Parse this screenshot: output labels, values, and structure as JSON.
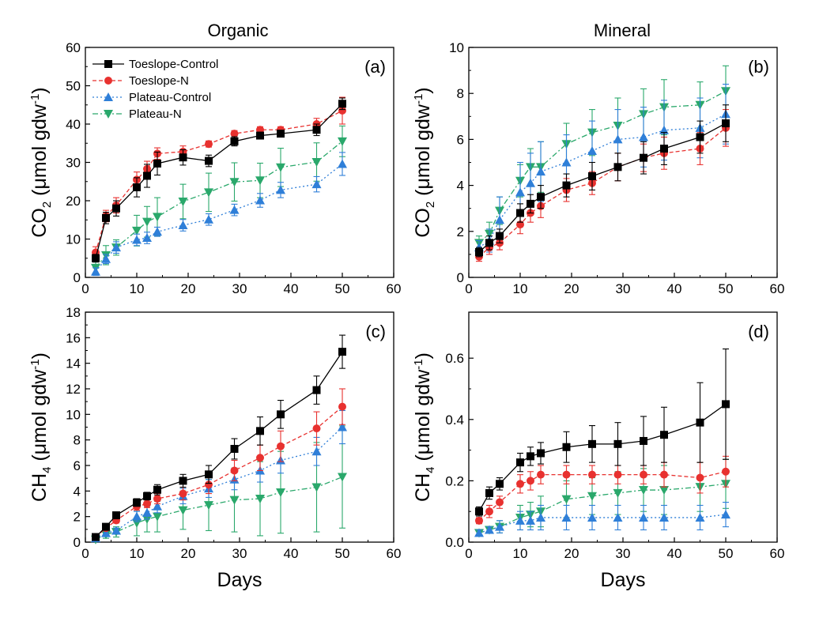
{
  "figure": {
    "column_titles": [
      "Organic",
      "Mineral"
    ],
    "x_label": "Days",
    "x_ticks": [
      0,
      10,
      20,
      30,
      40,
      50,
      60
    ],
    "legend": [
      "Toeslope-Control",
      "Toeslope-N",
      "Plateau-Control",
      "Plateau-N"
    ]
  },
  "colors": {
    "Toeslope-Control": "#000000",
    "Toeslope-N": "#e8312f",
    "Plateau-Control": "#2f7fd8",
    "Plateau-N": "#2aa86b"
  },
  "chart_data": [
    {
      "panel": "(a)",
      "type": "line",
      "title": "Organic",
      "ylabel_main": "CO",
      "ylabel_sub": "2",
      "ylabel_unit": "(μmol gdw",
      "ylabel_sup": "-1",
      "xlim": [
        0,
        60
      ],
      "ylim": [
        0,
        60
      ],
      "yticks": [
        0,
        10,
        20,
        30,
        40,
        50,
        60
      ],
      "yticklabels": [
        "0",
        "10",
        "20",
        "30",
        "40",
        "50",
        "60"
      ],
      "legend_position": "top-left",
      "x": [
        2,
        4,
        6,
        10,
        12,
        14,
        19,
        24,
        29,
        34,
        38,
        45,
        50
      ],
      "series": [
        {
          "name": "Toeslope-Control",
          "values": [
            5,
            15.5,
            18,
            23.5,
            26.5,
            29.7,
            31.3,
            30.4,
            35.5,
            37,
            37.5,
            38.5,
            45.3
          ],
          "errors": [
            1,
            1.5,
            2,
            2.5,
            3,
            3,
            2,
            1.5,
            1.2,
            0.8,
            0.8,
            1.5,
            1.5
          ]
        },
        {
          "name": "Toeslope-N",
          "values": [
            6.5,
            16,
            18.8,
            25.5,
            28.3,
            32.3,
            32.8,
            34.8,
            37.5,
            38.5,
            38.5,
            40,
            43.5
          ],
          "errors": [
            1.5,
            1.5,
            2,
            2,
            2,
            1.5,
            1.5,
            0.8,
            0.8,
            0.8,
            0.8,
            1.5,
            3.5
          ]
        },
        {
          "name": "Plateau-Control",
          "values": [
            1.5,
            4.8,
            7.8,
            9.8,
            10.3,
            11.9,
            13.6,
            15.1,
            17.6,
            20.1,
            22.8,
            24.3,
            29.6
          ],
          "errors": [
            1,
            1.2,
            1.5,
            1.5,
            1.5,
            1.2,
            1.5,
            1.5,
            1.5,
            1.8,
            2,
            2,
            3
          ]
        },
        {
          "name": "Plateau-N",
          "values": [
            2.5,
            5.8,
            7.8,
            12.2,
            14.5,
            15.8,
            19.8,
            22.2,
            24.9,
            25.3,
            28.7,
            30.1,
            35.5
          ],
          "errors": [
            1.5,
            2.5,
            2,
            4,
            4,
            5,
            4.5,
            5,
            5,
            4.5,
            5,
            5,
            4
          ]
        }
      ]
    },
    {
      "panel": "(b)",
      "type": "line",
      "title": "Mineral",
      "ylabel_main": "CO",
      "ylabel_sub": "2",
      "ylabel_unit": "(μmol gdw",
      "ylabel_sup": "-1",
      "xlim": [
        0,
        60
      ],
      "ylim": [
        0,
        10
      ],
      "yticks": [
        0,
        2,
        4,
        6,
        8,
        10
      ],
      "yticklabels": [
        "0",
        "2",
        "4",
        "6",
        "8",
        "10"
      ],
      "x": [
        2,
        4,
        6,
        10,
        12,
        14,
        19,
        24,
        29,
        34,
        38,
        45,
        50
      ],
      "series": [
        {
          "name": "Toeslope-Control",
          "values": [
            1.1,
            1.5,
            1.8,
            2.8,
            3.2,
            3.5,
            4.0,
            4.4,
            4.8,
            5.2,
            5.6,
            6.1,
            6.7
          ],
          "errors": [
            0.2,
            0.3,
            0.3,
            0.4,
            0.4,
            0.5,
            0.5,
            0.6,
            0.6,
            0.7,
            0.7,
            0.7,
            0.8
          ]
        },
        {
          "name": "Toeslope-N",
          "values": [
            0.9,
            1.3,
            1.5,
            2.3,
            2.8,
            3.1,
            3.8,
            4.1,
            4.8,
            5.2,
            5.4,
            5.6,
            6.5
          ],
          "errors": [
            0.2,
            0.3,
            0.3,
            0.4,
            0.4,
            0.5,
            0.5,
            0.5,
            0.6,
            0.6,
            0.7,
            0.7,
            0.8
          ]
        },
        {
          "name": "Plateau-Control",
          "values": [
            1.3,
            1.6,
            2.5,
            3.7,
            4.1,
            4.6,
            5.0,
            5.5,
            6.0,
            6.1,
            6.4,
            6.5,
            7.1
          ],
          "errors": [
            0.3,
            0.5,
            1.0,
            1.3,
            1.3,
            1.3,
            1.2,
            1.3,
            1.3,
            1.3,
            1.3,
            1.3,
            1.3
          ]
        },
        {
          "name": "Plateau-N",
          "values": [
            1.5,
            1.9,
            2.9,
            4.2,
            4.8,
            4.8,
            5.8,
            6.3,
            6.6,
            7.1,
            7.4,
            7.5,
            8.1
          ],
          "errors": [
            0.3,
            0.5,
            0.6,
            0.7,
            0.8,
            1.1,
            0.9,
            1.0,
            1.2,
            1.1,
            1.2,
            1.0,
            1.1
          ]
        }
      ]
    },
    {
      "panel": "(c)",
      "type": "line",
      "ylabel_main": "CH",
      "ylabel_sub": "4",
      "ylabel_unit": "(μmol gdw",
      "ylabel_sup": "-1",
      "xlim": [
        0,
        60
      ],
      "ylim": [
        0,
        18
      ],
      "yticks": [
        0,
        2,
        4,
        6,
        8,
        10,
        12,
        14,
        16,
        18
      ],
      "yticklabels": [
        "0",
        "2",
        "4",
        "6",
        "8",
        "10",
        "12",
        "14",
        "16",
        "18"
      ],
      "x": [
        2,
        4,
        6,
        10,
        12,
        14,
        19,
        24,
        29,
        34,
        38,
        45,
        50
      ],
      "series": [
        {
          "name": "Toeslope-Control",
          "values": [
            0.4,
            1.2,
            2.1,
            3.1,
            3.6,
            4.1,
            4.8,
            5.3,
            7.3,
            8.7,
            10.0,
            11.9,
            14.9
          ],
          "errors": [
            0.1,
            0.2,
            0.2,
            0.3,
            0.3,
            0.4,
            0.5,
            0.7,
            0.8,
            1.1,
            1.1,
            1.1,
            1.3
          ]
        },
        {
          "name": "Toeslope-N",
          "values": [
            0.4,
            1.1,
            1.7,
            2.8,
            3.0,
            3.4,
            3.8,
            4.5,
            5.6,
            6.6,
            7.5,
            8.9,
            10.6
          ],
          "errors": [
            0.1,
            0.2,
            0.2,
            0.3,
            0.3,
            0.4,
            0.5,
            0.7,
            0.8,
            1.0,
            1.2,
            1.3,
            1.4
          ]
        },
        {
          "name": "Plateau-Control",
          "values": [
            0.3,
            0.7,
            0.9,
            2.0,
            2.3,
            2.8,
            3.6,
            4.2,
            4.9,
            5.6,
            6.4,
            7.1,
            9.0
          ],
          "errors": [
            0.1,
            0.2,
            0.2,
            0.4,
            0.5,
            0.5,
            0.6,
            0.7,
            0.8,
            0.9,
            1.0,
            1.1,
            1.3
          ]
        },
        {
          "name": "Plateau-N",
          "values": [
            0.2,
            0.6,
            0.8,
            1.5,
            1.8,
            2.0,
            2.5,
            2.9,
            3.3,
            3.4,
            3.9,
            4.3,
            5.1
          ],
          "errors": [
            0.1,
            0.3,
            0.4,
            1.0,
            1.0,
            1.2,
            1.5,
            2.0,
            2.5,
            2.9,
            3.2,
            3.5,
            4.0
          ]
        }
      ]
    },
    {
      "panel": "(d)",
      "type": "line",
      "ylabel_main": "CH",
      "ylabel_sub": "4",
      "ylabel_unit": "(μmol gdw",
      "ylabel_sup": "-1",
      "xlim": [
        0,
        60
      ],
      "ylim": [
        0,
        0.75
      ],
      "yticks": [
        0,
        0.2,
        0.4,
        0.6
      ],
      "yticklabels": [
        "0.0",
        "0.2",
        "0.4",
        "0.6"
      ],
      "x": [
        2,
        4,
        6,
        10,
        12,
        14,
        19,
        24,
        29,
        34,
        38,
        45,
        50
      ],
      "series": [
        {
          "name": "Toeslope-Control",
          "values": [
            0.1,
            0.16,
            0.19,
            0.26,
            0.28,
            0.29,
            0.31,
            0.32,
            0.32,
            0.33,
            0.35,
            0.39,
            0.45
          ],
          "errors": [
            0.015,
            0.02,
            0.02,
            0.03,
            0.03,
            0.035,
            0.05,
            0.06,
            0.07,
            0.08,
            0.09,
            0.13,
            0.18
          ]
        },
        {
          "name": "Toeslope-N",
          "values": [
            0.07,
            0.1,
            0.13,
            0.19,
            0.2,
            0.22,
            0.22,
            0.22,
            0.22,
            0.22,
            0.22,
            0.21,
            0.23
          ],
          "errors": [
            0.01,
            0.02,
            0.02,
            0.03,
            0.03,
            0.03,
            0.03,
            0.03,
            0.03,
            0.03,
            0.04,
            0.05,
            0.05
          ]
        },
        {
          "name": "Plateau-Control",
          "values": [
            0.03,
            0.04,
            0.05,
            0.07,
            0.07,
            0.08,
            0.08,
            0.08,
            0.08,
            0.08,
            0.08,
            0.08,
            0.09
          ],
          "errors": [
            0.01,
            0.01,
            0.02,
            0.03,
            0.03,
            0.04,
            0.04,
            0.04,
            0.04,
            0.04,
            0.04,
            0.04,
            0.04
          ]
        },
        {
          "name": "Plateau-N",
          "values": [
            0.03,
            0.04,
            0.05,
            0.08,
            0.09,
            0.1,
            0.14,
            0.15,
            0.16,
            0.17,
            0.17,
            0.18,
            0.19
          ],
          "errors": [
            0.01,
            0.01,
            0.02,
            0.04,
            0.04,
            0.05,
            0.06,
            0.06,
            0.07,
            0.07,
            0.08,
            0.08,
            0.08
          ]
        }
      ]
    }
  ]
}
